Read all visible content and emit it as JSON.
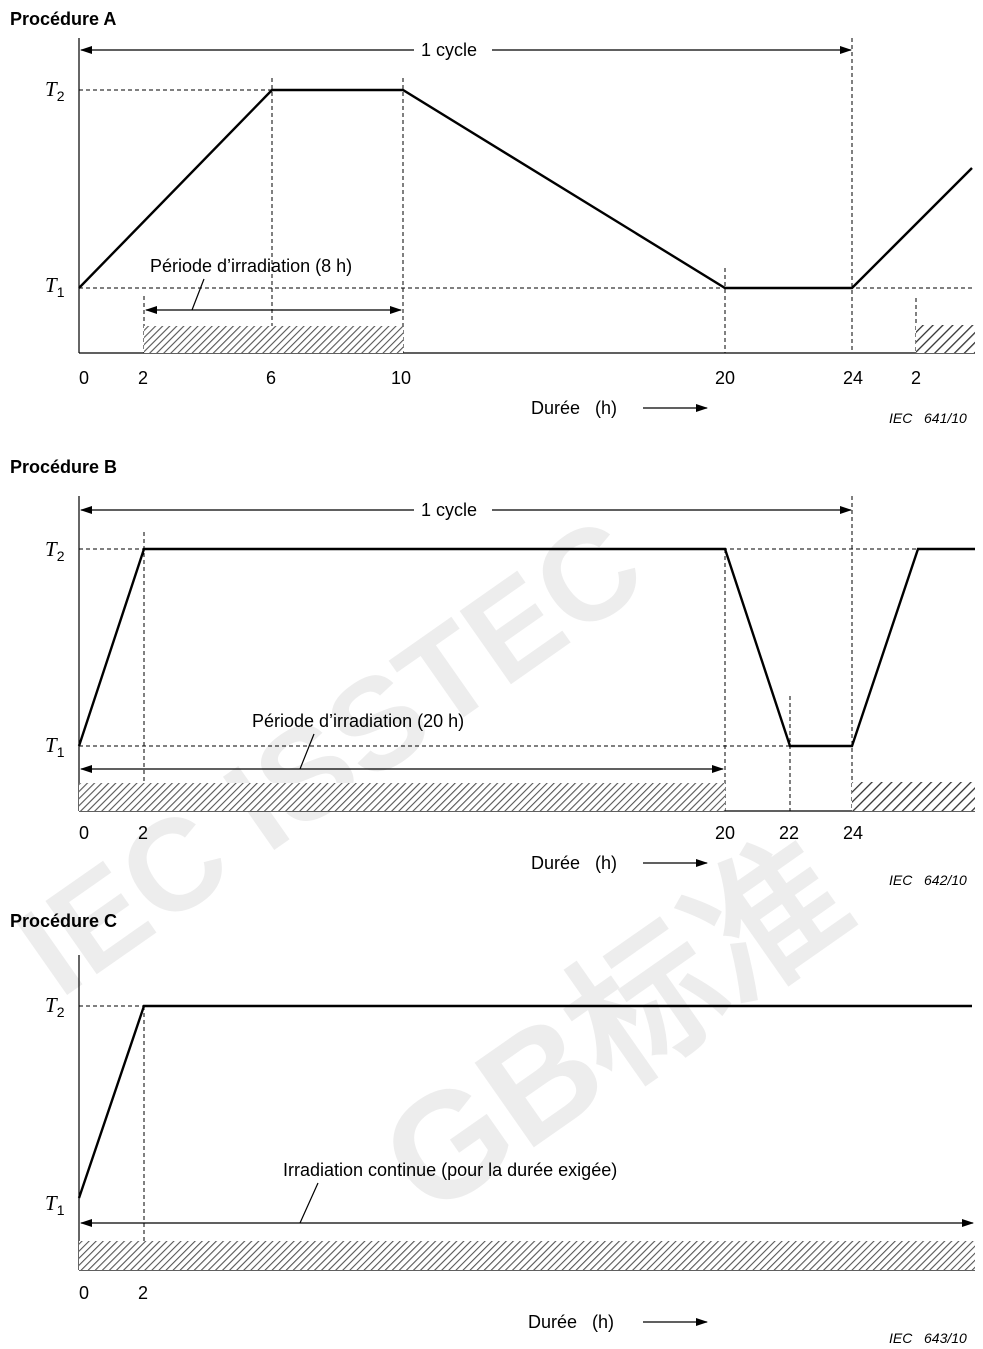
{
  "watermark": {
    "line1": "IEC ISSTEC",
    "line2": "GB标准"
  },
  "procedures": [
    {
      "heading": "Procédure A",
      "cycle_label": "1 cycle",
      "t2_label": "T",
      "t2_sub": "2",
      "t1_label": "T",
      "t1_sub": "1",
      "irradiation_label": "Période d’irradiation (8 h)",
      "x_axis_label": "Durée   (h)",
      "ticks": [
        "0",
        "2",
        "6",
        "10",
        "20",
        "24",
        "2"
      ],
      "figure_id": "IEC   641/10",
      "hatch_color": "#555555"
    },
    {
      "heading": "Procédure B",
      "cycle_label": "1 cycle",
      "t2_label": "T",
      "t2_sub": "2",
      "t1_label": "T",
      "t1_sub": "1",
      "irradiation_label": "Période d’irradiation (20 h)",
      "x_axis_label": "Durée   (h)",
      "ticks": [
        "0",
        "2",
        "20",
        "22",
        "24"
      ],
      "figure_id": "IEC   642/10",
      "hatch_color": "#555555"
    },
    {
      "heading": "Procédure C",
      "t2_label": "T",
      "t2_sub": "2",
      "t1_label": "T",
      "t1_sub": "1",
      "irradiation_label": "Irradiation continue (pour la durée exigée)",
      "x_axis_label": "Durée   (h)",
      "ticks": [
        "0",
        "2"
      ],
      "figure_id": "IEC   643/10",
      "hatch_color": "#555555"
    }
  ]
}
